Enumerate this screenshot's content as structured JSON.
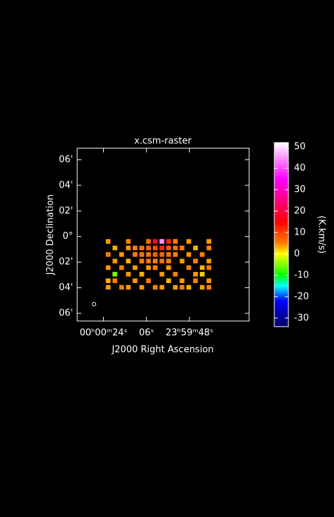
{
  "chart_data": {
    "type": "heatmap",
    "title": "x.csm-raster",
    "x_label": "J2000 Right Ascension",
    "y_label": "J2000 Declination",
    "colorbar_label": "(K.km/s)",
    "xlim": [
      35,
      -37
    ],
    "xticks": [
      {
        "value": 24,
        "label": "00ʰ00ᵐ24ˢ"
      },
      {
        "value": 6,
        "label": "06ˢ"
      },
      {
        "value": -12,
        "label": "23ʰ59ᵐ48ˢ"
      }
    ],
    "ylim": [
      -6.6,
      6.9
    ],
    "yticks": [
      {
        "value": 6,
        "label": "06'"
      },
      {
        "value": 4,
        "label": "04'"
      },
      {
        "value": 2,
        "label": "02'"
      },
      {
        "value": 0,
        "label": "0°"
      },
      {
        "value": -2,
        "label": "02'"
      },
      {
        "value": -4,
        "label": "04'"
      },
      {
        "value": -6,
        "label": "06'"
      }
    ],
    "extent_x": [
      23,
      -22
    ],
    "extent_y": [
      -0.2,
      -4.3
    ],
    "z": [
      [
        4,
        null,
        null,
        5,
        null,
        null,
        6,
        20,
        45,
        12,
        5,
        null,
        4,
        null,
        null,
        4
      ],
      [
        null,
        3,
        null,
        4,
        5,
        6,
        7,
        9,
        12,
        8,
        6,
        5,
        null,
        3,
        null,
        5
      ],
      [
        5,
        null,
        4,
        null,
        5,
        6,
        6,
        8,
        7,
        6,
        5,
        null,
        4,
        null,
        5,
        null
      ],
      [
        null,
        4,
        null,
        3,
        null,
        5,
        6,
        5,
        6,
        5,
        null,
        4,
        null,
        5,
        null,
        4
      ],
      [
        4,
        null,
        5,
        null,
        4,
        null,
        4,
        5,
        null,
        4,
        null,
        null,
        5,
        null,
        3,
        5
      ],
      [
        null,
        -5,
        null,
        4,
        null,
        3,
        null,
        null,
        4,
        null,
        5,
        null,
        null,
        4,
        2,
        null
      ],
      [
        3,
        5,
        null,
        null,
        4,
        null,
        5,
        null,
        null,
        3,
        null,
        4,
        null,
        5,
        null,
        4
      ],
      [
        4,
        null,
        5,
        4,
        null,
        4,
        null,
        5,
        4,
        null,
        4,
        5,
        3,
        null,
        4,
        5
      ]
    ],
    "zlim": [
      -34,
      52
    ],
    "zticks": [
      50,
      40,
      30,
      20,
      10,
      0,
      -10,
      -20,
      -30
    ],
    "colorscale": [
      [
        -34,
        "#000060"
      ],
      [
        -22,
        "#0000ff"
      ],
      [
        -15,
        "#00ffff"
      ],
      [
        -10,
        "#00ff00"
      ],
      [
        0,
        "#ffff00"
      ],
      [
        5,
        "#ff8000"
      ],
      [
        15,
        "#ff0000"
      ],
      [
        35,
        "#ff00ff"
      ],
      [
        52,
        "#ffffff"
      ]
    ]
  }
}
